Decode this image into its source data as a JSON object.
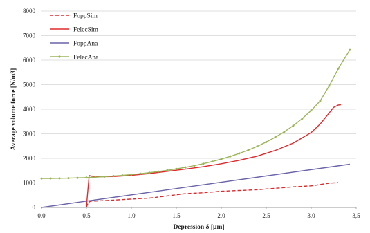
{
  "chart_data": {
    "type": "line",
    "title": "",
    "xlabel": "Depression δ [µm]",
    "ylabel": "Average volume force [N/m3]",
    "xlim": [
      0,
      3.5
    ],
    "ylim": [
      0,
      8000
    ],
    "xticks": [
      "0,0",
      "0,5",
      "1,0",
      "1,5",
      "2,0",
      "2,5",
      "3,0",
      "3,5"
    ],
    "yticks": [
      "0",
      "1000",
      "2000",
      "3000",
      "4000",
      "5000",
      "6000",
      "7000",
      "8000"
    ],
    "grid": "horizontal",
    "legend_position": "top-left",
    "series": [
      {
        "name": "FoppSim",
        "color": "#e0282d",
        "style": "dashed",
        "x": [
          0.5,
          0.52,
          0.55,
          0.6,
          0.8,
          1.0,
          1.2,
          1.4,
          1.6,
          1.8,
          2.0,
          2.2,
          2.4,
          2.6,
          2.8,
          3.0,
          3.2,
          3.3
        ],
        "y": [
          20,
          200,
          260,
          260,
          300,
          340,
          380,
          470,
          560,
          600,
          660,
          690,
          720,
          780,
          840,
          880,
          990,
          1010
        ]
      },
      {
        "name": "FelecSim",
        "color": "#e0282d",
        "style": "solid",
        "x": [
          0.5,
          0.53,
          0.55,
          0.6,
          0.8,
          1.0,
          1.2,
          1.4,
          1.6,
          1.8,
          2.0,
          2.2,
          2.4,
          2.6,
          2.8,
          3.0,
          3.1,
          3.2,
          3.25,
          3.3,
          3.33
        ],
        "y": [
          40,
          1300,
          1280,
          1250,
          1260,
          1310,
          1380,
          1470,
          1560,
          1660,
          1780,
          1920,
          2090,
          2320,
          2620,
          3050,
          3400,
          3850,
          4080,
          4170,
          4180
        ]
      },
      {
        "name": "FoppAna",
        "color": "#6a63a8",
        "style": "solid",
        "x": [
          0,
          3.43
        ],
        "y": [
          0,
          1760
        ]
      },
      {
        "name": "FelecAna",
        "color": "#9cb55a",
        "style": "solid-markers",
        "x": [
          0,
          0.1,
          0.2,
          0.3,
          0.4,
          0.5,
          0.6,
          0.7,
          0.8,
          0.9,
          1.0,
          1.1,
          1.2,
          1.3,
          1.4,
          1.5,
          1.6,
          1.7,
          1.8,
          1.9,
          2.0,
          2.1,
          2.2,
          2.3,
          2.4,
          2.5,
          2.6,
          2.7,
          2.8,
          2.9,
          3.0,
          3.1,
          3.2,
          3.3,
          3.43
        ],
        "y": [
          1180,
          1183,
          1188,
          1195,
          1205,
          1218,
          1235,
          1256,
          1280,
          1308,
          1340,
          1376,
          1417,
          1463,
          1514,
          1571,
          1634,
          1704,
          1782,
          1870,
          1970,
          2080,
          2200,
          2335,
          2490,
          2665,
          2860,
          3080,
          3330,
          3620,
          3950,
          4340,
          4950,
          5650,
          6420
        ]
      }
    ]
  }
}
